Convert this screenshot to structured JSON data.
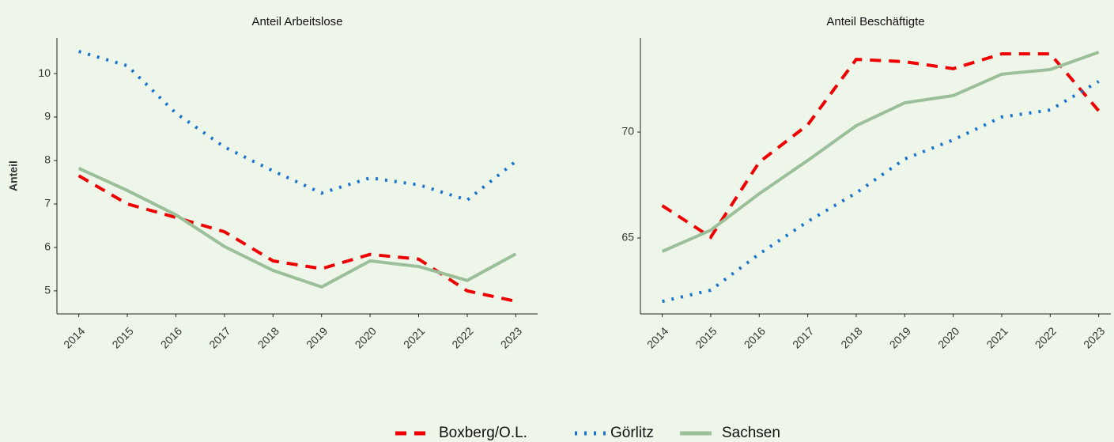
{
  "chart_data": [
    {
      "type": "line",
      "title": "Anteil Arbeitslose",
      "y_label": "Anteil",
      "x": [
        2014,
        2015,
        2016,
        2017,
        2018,
        2019,
        2020,
        2021,
        2022,
        2023
      ],
      "xticks": [
        2014,
        2015,
        2016,
        2017,
        2018,
        2019,
        2020,
        2021,
        2022,
        2023
      ],
      "xlim": [
        2013.55,
        2023.45
      ],
      "ylim": [
        4.47,
        10.82
      ],
      "yticks": [
        5,
        6,
        7,
        8,
        9,
        10
      ],
      "series": [
        {
          "name": "Boxberg/O.L.",
          "color": "#ee0000",
          "dash": "dashed",
          "values": [
            7.65,
            7.0,
            6.69,
            6.36,
            5.69,
            5.51,
            5.84,
            5.73,
            5.0,
            4.76
          ]
        },
        {
          "name": "Görlitz",
          "color": "#1874cd",
          "dash": "dotted",
          "values": [
            10.51,
            10.18,
            9.09,
            8.31,
            7.76,
            7.25,
            7.6,
            7.44,
            7.09,
            7.98
          ]
        },
        {
          "name": "Sachsen",
          "color": "#9bbf99",
          "dash": "solid",
          "values": [
            7.82,
            7.31,
            6.75,
            6.02,
            5.47,
            5.09,
            5.69,
            5.56,
            5.24,
            5.85
          ]
        }
      ]
    },
    {
      "type": "line",
      "title": "Anteil Beschäftigte",
      "x": [
        2014,
        2015,
        2016,
        2017,
        2018,
        2019,
        2020,
        2021,
        2022,
        2023
      ],
      "xticks": [
        2014,
        2015,
        2016,
        2017,
        2018,
        2019,
        2020,
        2021,
        2022,
        2023
      ],
      "xlim": [
        2013.55,
        2023.25
      ],
      "ylim": [
        61.42,
        74.44
      ],
      "yticks": [
        65,
        70
      ],
      "series": [
        {
          "name": "Boxberg/O.L.",
          "color": "#ee0000",
          "dash": "dashed",
          "values": [
            66.53,
            65.04,
            68.58,
            70.34,
            73.43,
            73.32,
            72.99,
            73.69,
            73.69,
            71.0
          ]
        },
        {
          "name": "Görlitz",
          "color": "#1874cd",
          "dash": "dotted",
          "values": [
            62.01,
            62.54,
            64.25,
            65.78,
            67.13,
            68.73,
            69.63,
            70.71,
            71.04,
            72.39
          ]
        },
        {
          "name": "Sachsen",
          "color": "#9bbf99",
          "dash": "solid",
          "values": [
            64.37,
            65.37,
            67.09,
            68.66,
            70.3,
            71.38,
            71.72,
            72.73,
            72.95,
            73.77
          ]
        }
      ]
    }
  ]
}
